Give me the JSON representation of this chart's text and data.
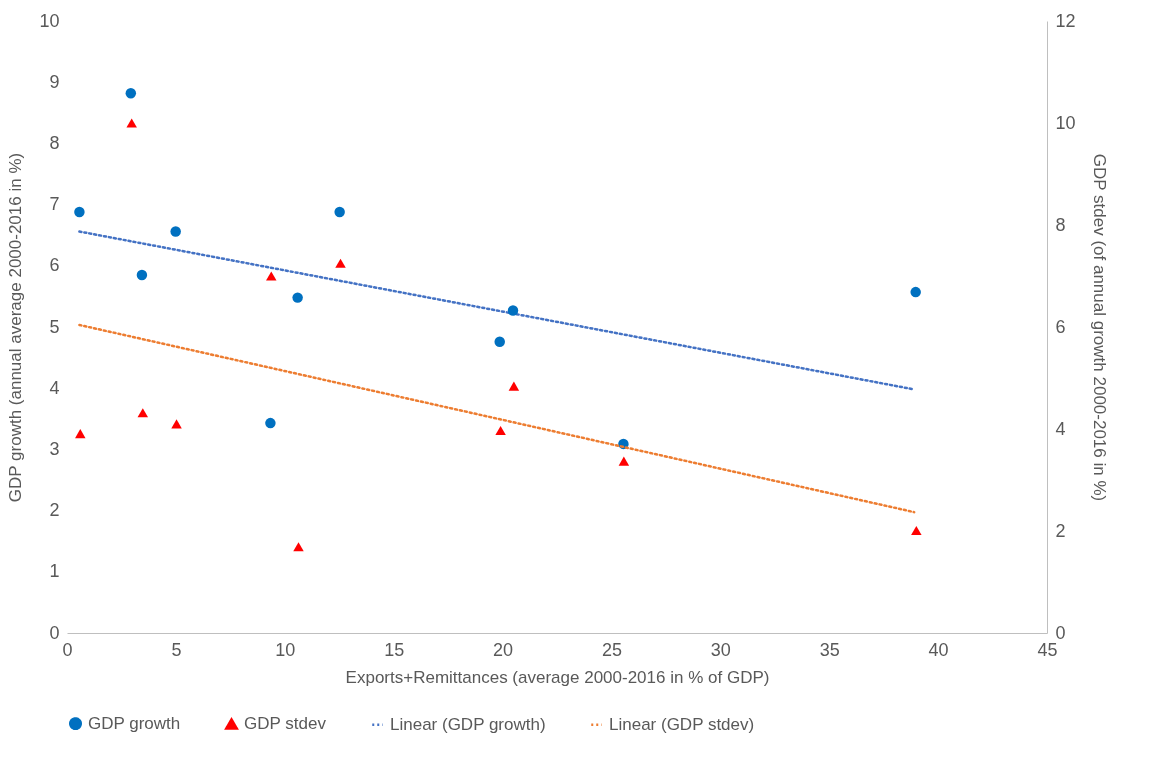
{
  "chart_data": {
    "type": "scatter",
    "xlabel": "Exports+Remittances (average 2000-2016 in % of GDP)",
    "ylabel": "GDP growth (annual average 2000-2016 in %)",
    "y2label": "GDP stdev (of annual growth 2000-2016 in %)",
    "x": [
      0.57,
      2.93,
      3.44,
      4.99,
      9.34,
      10.59,
      12.52,
      19.87,
      20.48,
      25.55,
      38.97
    ],
    "series": [
      {
        "name": "GDP growth",
        "type": "scatter",
        "marker": "circle",
        "color": "#0070c0",
        "values": [
          6.88,
          8.82,
          5.85,
          6.56,
          3.43,
          5.48,
          6.88,
          4.76,
          5.27,
          3.09,
          5.57
        ]
      },
      {
        "name": "GDP stdev",
        "type": "scatter",
        "marker": "triangle",
        "axis": "y2",
        "color": "#ff0000",
        "x": [
          0.61,
          2.97,
          3.48,
          5.03,
          9.38,
          10.63,
          12.56,
          19.91,
          20.52,
          25.57,
          39.0
        ],
        "values": [
          3.91,
          10.0,
          4.32,
          4.1,
          7.0,
          1.69,
          7.25,
          3.97,
          4.84,
          3.37,
          2.01
        ]
      },
      {
        "name": "Linear (GDP growth)",
        "type": "line",
        "line_style": "dotted",
        "color": "#4472c4",
        "x": [
          0.57,
          38.9
        ],
        "values": [
          6.56,
          3.98
        ]
      },
      {
        "name": "Linear (GDP stdev)",
        "type": "line",
        "line_style": "dotted",
        "axis": "y2",
        "color": "#ed7d31",
        "x": [
          0.57,
          38.9
        ],
        "values": [
          6.04,
          2.37
        ]
      }
    ],
    "xlim": [
      0,
      45
    ],
    "xticks": [
      0,
      5,
      10,
      15,
      20,
      25,
      30,
      35,
      40,
      45
    ],
    "ylim": [
      0,
      10
    ],
    "yticks": [
      0,
      1,
      2,
      3,
      4,
      5,
      6,
      7,
      8,
      9,
      10
    ],
    "y2lim": [
      0,
      12
    ],
    "y2ticks": [
      0,
      2,
      4,
      6,
      8,
      10,
      12
    ],
    "grid": false,
    "legend": "bottom"
  }
}
